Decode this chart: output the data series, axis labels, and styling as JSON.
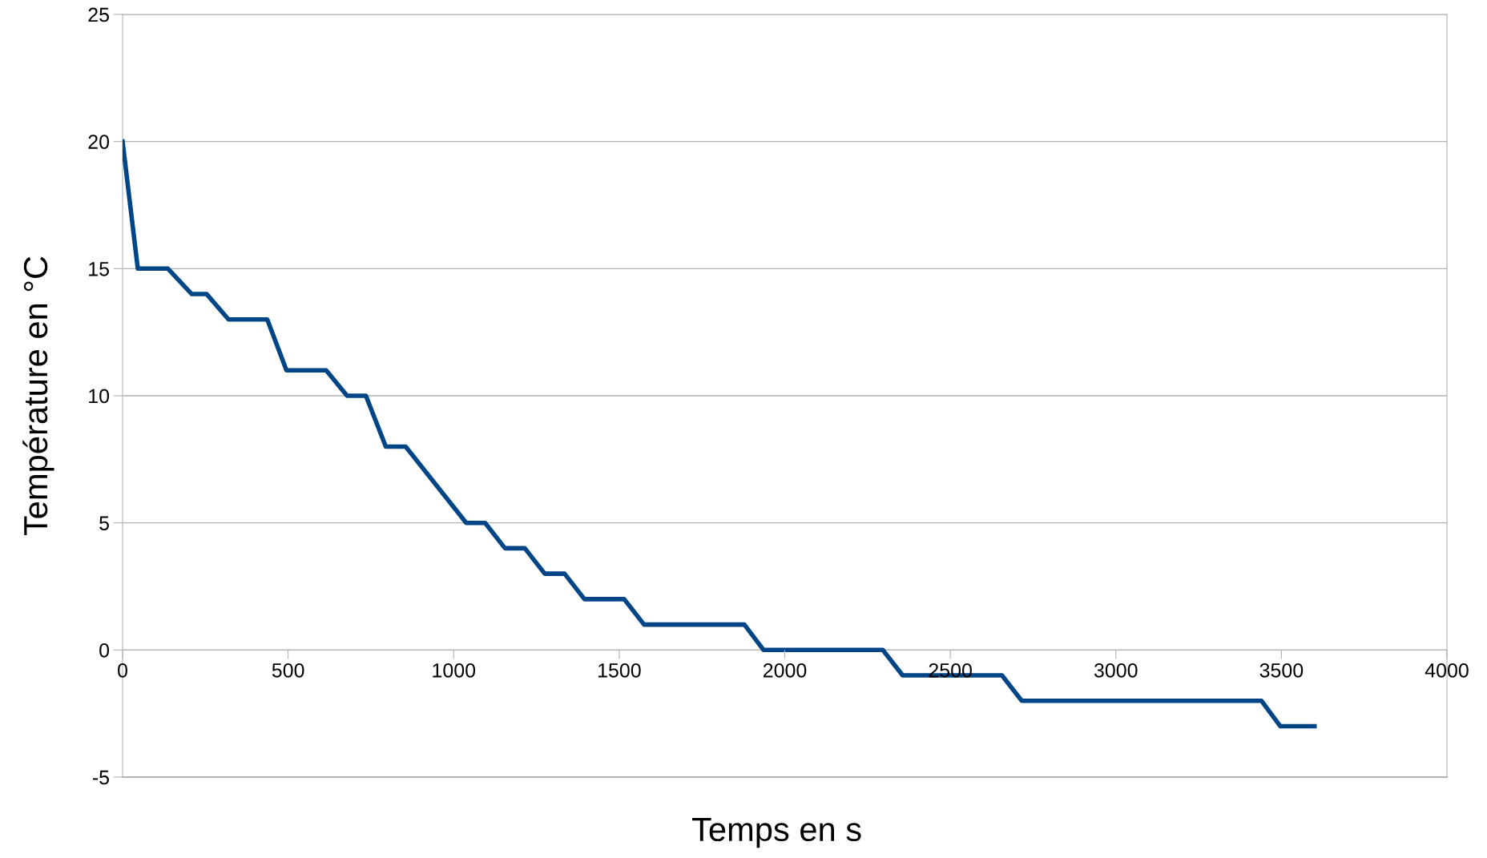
{
  "chart_data": {
    "type": "line",
    "xlabel": "Temps en s",
    "ylabel": "Température en °C",
    "x": [
      0,
      46,
      137,
      209,
      254,
      320,
      437,
      495,
      615,
      678,
      735,
      795,
      855,
      1038,
      1095,
      1155,
      1215,
      1275,
      1335,
      1395,
      1515,
      1575,
      1878,
      1936,
      2296,
      2356,
      2656,
      2716,
      3440,
      3497,
      3600
    ],
    "series": [
      {
        "color": "#004586",
        "values": [
          20,
          15,
          15,
          14,
          14,
          13,
          13,
          11,
          11,
          10,
          10,
          8,
          8,
          5,
          5,
          4,
          4,
          3,
          3,
          2,
          2,
          1,
          1,
          0,
          0,
          -1,
          -1,
          -2,
          -2,
          -3,
          -3
        ]
      }
    ],
    "xlim": [
      0,
      4000
    ],
    "xticks": [
      0,
      500,
      1000,
      1500,
      2000,
      2500,
      3000,
      3500,
      4000
    ],
    "ylim": [
      -5,
      25
    ],
    "yticks": [
      -5,
      0,
      5,
      10,
      15,
      20,
      25
    ],
    "grid": "y",
    "marker": "none",
    "line_style": "solid"
  }
}
